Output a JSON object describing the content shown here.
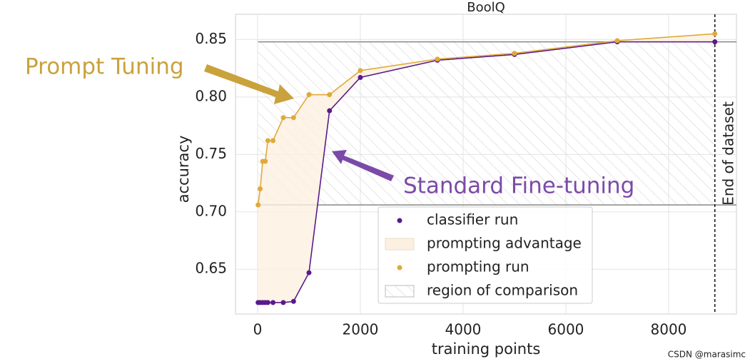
{
  "chart_data": {
    "type": "line",
    "title": "BoolQ",
    "xlabel": "training points",
    "ylabel": "accuracy",
    "x": [
      10,
      50,
      100,
      150,
      200,
      300,
      500,
      700,
      1000,
      1400,
      2000,
      3500,
      5000,
      7000,
      8900
    ],
    "series": [
      {
        "name": "classifier run",
        "color": "#5a1a8c",
        "values": [
          0.621,
          0.621,
          0.621,
          0.621,
          0.621,
          0.621,
          0.621,
          0.622,
          0.647,
          0.788,
          0.817,
          0.832,
          0.837,
          0.848,
          0.848
        ]
      },
      {
        "name": "prompting run",
        "color": "#e0a93a",
        "values": [
          0.706,
          0.72,
          0.744,
          0.744,
          0.762,
          0.762,
          0.782,
          0.782,
          0.802,
          0.802,
          0.823,
          0.833,
          0.838,
          0.849,
          0.855
        ]
      }
    ],
    "advantage_label": "prompting advantage",
    "advantage_color": "#fdf0e0",
    "region_label": "region of comparison",
    "vline_label": "End of dataset",
    "xlim": [
      -430,
      9320
    ],
    "ylim": [
      0.611,
      0.872
    ],
    "xticks": [
      0,
      2000,
      4000,
      6000,
      8000
    ],
    "yticks": [
      0.65,
      {
        "value": 0.7,
        "label": "0.70"
      },
      0.75,
      {
        "value": 0.8,
        "label": "0.80"
      },
      0.85
    ],
    "grid": true,
    "annotations": [
      {
        "text": "Prompt Tuning",
        "color": "#c9a23c"
      },
      {
        "text": "Standard Fine-tuning",
        "color": "#7b4aa8"
      }
    ],
    "watermark": "CSDN @marasimc"
  }
}
